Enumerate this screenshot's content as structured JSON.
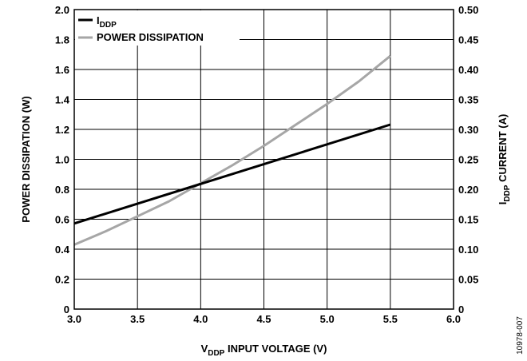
{
  "chart_data": {
    "type": "line",
    "title": "",
    "xlabel": {
      "prefix": "V",
      "sub": "DDP",
      "suffix": " INPUT VOLTAGE (V)"
    },
    "ylabel_left": "POWER DISSIPATION (W)",
    "ylabel_right": {
      "prefix": "I",
      "sub": "DDP",
      "suffix": " CURRENT (A)"
    },
    "xlim": [
      3.0,
      6.0
    ],
    "ylim_left": [
      0,
      2.0
    ],
    "ylim_right": [
      0,
      0.5
    ],
    "x_ticks": [
      "3.0",
      "3.5",
      "4.0",
      "4.5",
      "5.0",
      "5.5",
      "6.0"
    ],
    "y_left_ticks": [
      "0",
      "0.2",
      "0.4",
      "0.6",
      "0.8",
      "1.0",
      "1.2",
      "1.4",
      "1.6",
      "1.8",
      "2.0"
    ],
    "y_right_ticks": [
      "0",
      "0.05",
      "0.10",
      "0.15",
      "0.20",
      "0.25",
      "0.30",
      "0.35",
      "0.40",
      "0.45",
      "0.50"
    ],
    "grid": true,
    "legend_position": "top-left",
    "series": [
      {
        "name": {
          "prefix": "I",
          "sub": "DDP",
          "suffix": ""
        },
        "axis": "right",
        "color": "#000000",
        "x": [
          3.0,
          5.5
        ],
        "y": [
          0.143,
          0.308
        ]
      },
      {
        "name": {
          "prefix": "POWER DISSIPATION",
          "sub": "",
          "suffix": ""
        },
        "axis": "left",
        "color": "#a6a6a6",
        "x": [
          3.0,
          3.25,
          3.5,
          3.75,
          4.0,
          4.25,
          4.5,
          4.75,
          5.0,
          5.25,
          5.5
        ],
        "y": [
          0.43,
          0.52,
          0.62,
          0.72,
          0.84,
          0.96,
          1.09,
          1.23,
          1.37,
          1.52,
          1.69
        ]
      }
    ]
  },
  "figure_code": "10978-007"
}
